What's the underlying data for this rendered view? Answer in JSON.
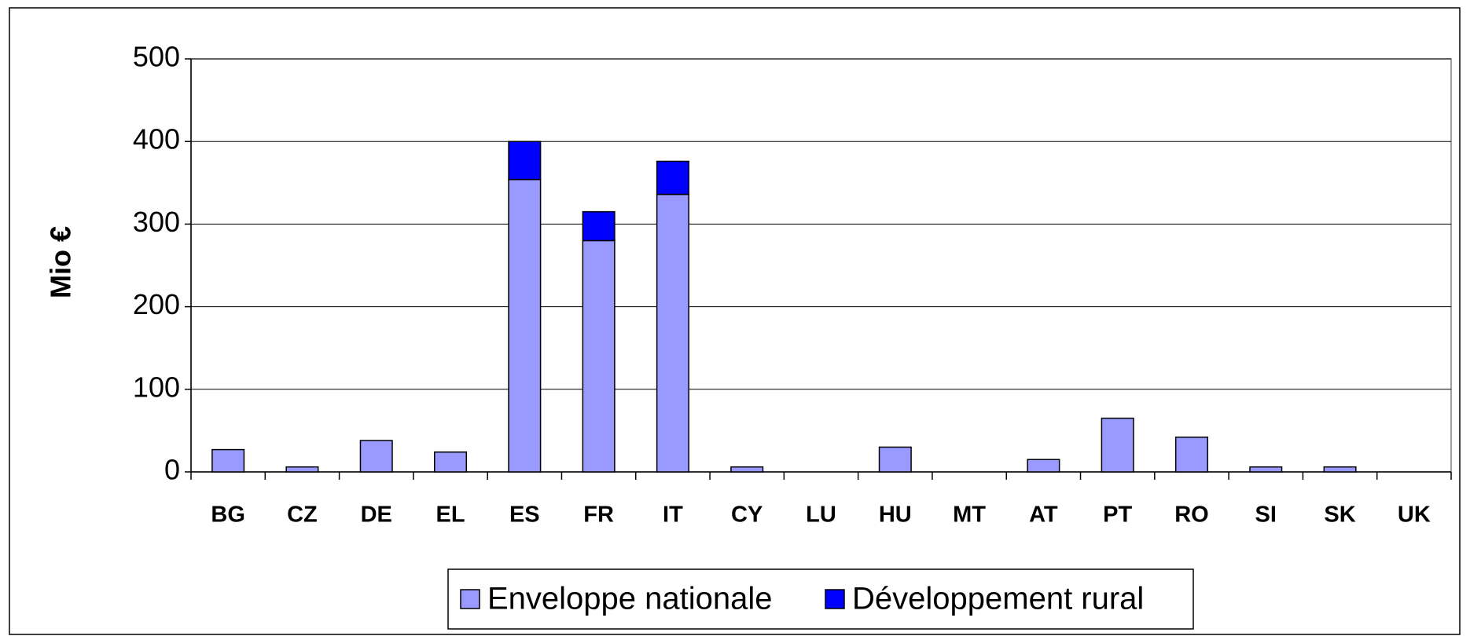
{
  "chart_data": {
    "type": "stacked_bar",
    "y_label": "Mio €",
    "categories": [
      "BG",
      "CZ",
      "DE",
      "EL",
      "ES",
      "FR",
      "IT",
      "CY",
      "LU",
      "HU",
      "MT",
      "AT",
      "PT",
      "RO",
      "SI",
      "SK",
      "UK"
    ],
    "series": [
      {
        "name": "Enveloppe nationale",
        "color": "#9999ff",
        "values": [
          27,
          6,
          38,
          24,
          354,
          280,
          336,
          6,
          0,
          30,
          0,
          15,
          65,
          42,
          6,
          6,
          0
        ]
      },
      {
        "name": "Développement rural",
        "color": "#0000ff",
        "values": [
          0,
          0,
          0,
          0,
          46,
          35,
          40,
          0,
          0,
          0,
          0,
          0,
          0,
          0,
          0,
          0,
          0
        ]
      }
    ],
    "ylim": [
      0,
      500
    ],
    "yticks": [
      0,
      100,
      200,
      300,
      400,
      500
    ],
    "grid": true,
    "legend": "bottom"
  }
}
